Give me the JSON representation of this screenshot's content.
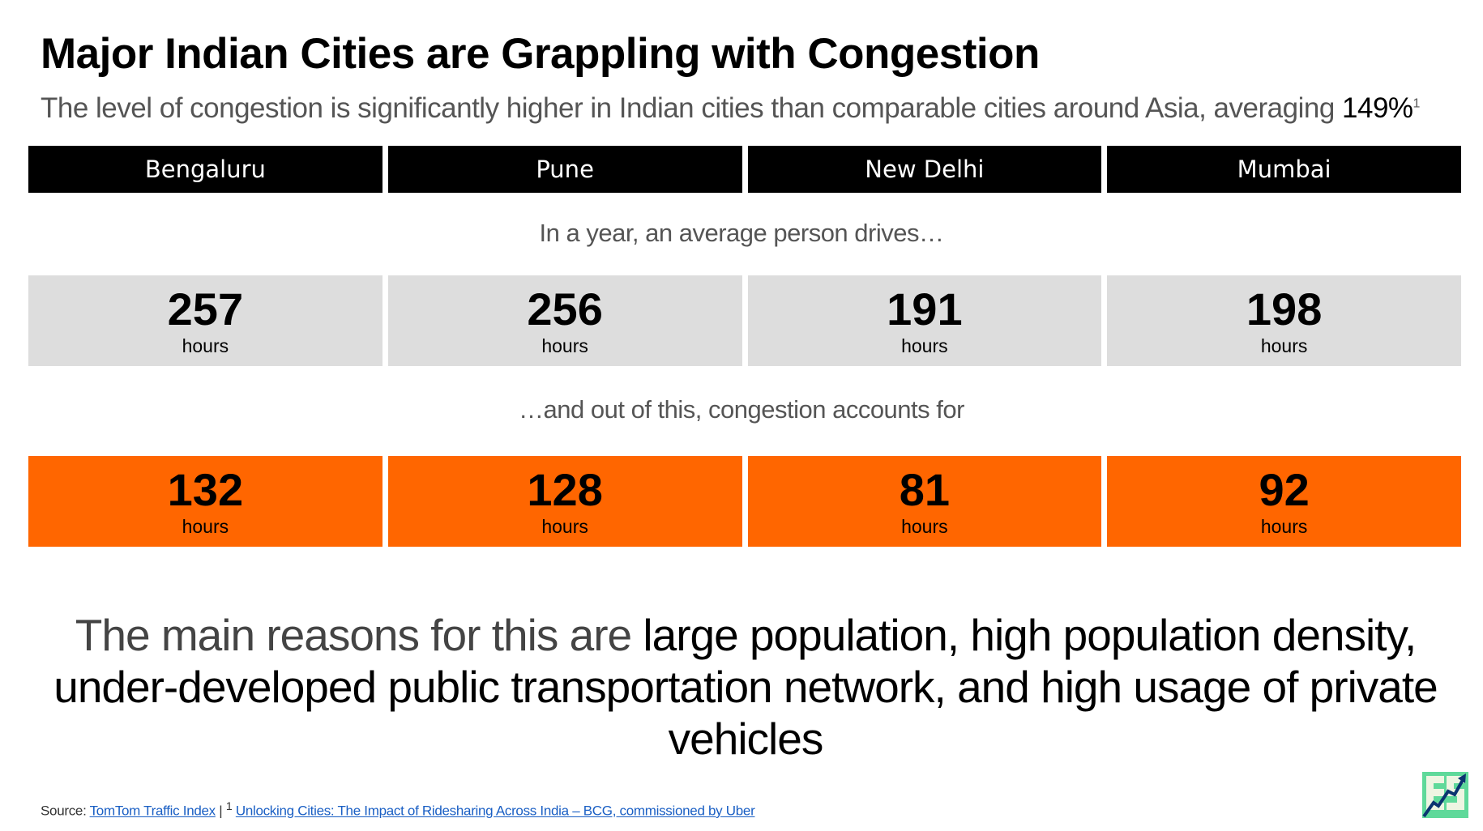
{
  "title": "Major Indian Cities are Grappling with Congestion",
  "subtitle": {
    "text": "The level of congestion is significantly higher in Indian cities than comparable cities around Asia, averaging ",
    "highlight": "149%",
    "sup": "1"
  },
  "cities": [
    "Bengaluru",
    "Pune",
    "New Delhi",
    "Mumbai"
  ],
  "drive_caption": "In a year, an average person drives…",
  "drive_hours": [
    {
      "value": "257",
      "unit": "hours"
    },
    {
      "value": "256",
      "unit": "hours"
    },
    {
      "value": "191",
      "unit": "hours"
    },
    {
      "value": "198",
      "unit": "hours"
    }
  ],
  "congestion_caption": "…and out of this, congestion accounts for",
  "congestion_hours": [
    {
      "value": "132",
      "unit": "hours"
    },
    {
      "value": "128",
      "unit": "hours"
    },
    {
      "value": "81",
      "unit": "hours"
    },
    {
      "value": "92",
      "unit": "hours"
    }
  ],
  "reasons": {
    "lead": "The main reasons for this are ",
    "emphasis": "large population, high population density, under-developed public transportation network, and high usage of private vehicles"
  },
  "footer": {
    "source_label": "Source: ",
    "link1": "TomTom Traffic Index",
    "separator": " | ",
    "sup": "1",
    "link2": "Unlocking Cities: The Impact of Ridesharing Across India – BCG, commissioned by Uber"
  },
  "colors": {
    "accent": "#ff6600",
    "grey": "#dddddd",
    "header": "#000000"
  }
}
